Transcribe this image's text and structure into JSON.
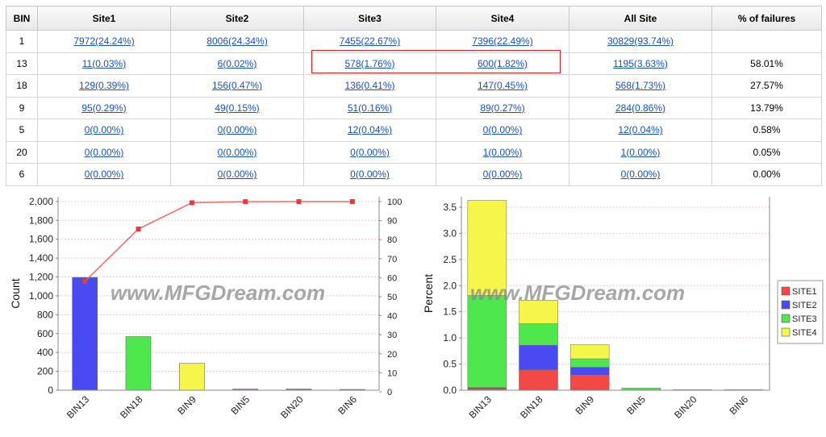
{
  "table": {
    "headers": [
      "BIN",
      "Site1",
      "Site2",
      "Site3",
      "Site4",
      "All Site",
      "% of failures"
    ],
    "rows": [
      [
        "1",
        "7972(24.24%)",
        "8006(24.34%)",
        "7455(22.67%)",
        "7396(22.49%)",
        "30829(93.74%)",
        ""
      ],
      [
        "13",
        "11(0.03%)",
        "6(0.02%)",
        "578(1.76%)",
        "600(1.82%)",
        "1195(3.63%)",
        "58.01%"
      ],
      [
        "18",
        "129(0.39%)",
        "156(0.47%)",
        "136(0.41%)",
        "147(0.45%)",
        "568(1.73%)",
        "27.57%"
      ],
      [
        "9",
        "95(0.29%)",
        "49(0.15%)",
        "51(0.16%)",
        "89(0.27%)",
        "284(0.86%)",
        "13.79%"
      ],
      [
        "5",
        "0(0.00%)",
        "0(0.00%)",
        "12(0.04%)",
        "0(0.00%)",
        "12(0.04%)",
        "0.58%"
      ],
      [
        "20",
        "0(0.00%)",
        "0(0.00%)",
        "0(0.00%)",
        "1(0.00%)",
        "1(0.00%)",
        "0.05%"
      ],
      [
        "6",
        "0(0.00%)",
        "0(0.00%)",
        "0(0.00%)",
        "0(0.00%)",
        "0(0.00%)",
        "0.00%"
      ]
    ]
  },
  "watermark": "www.MFGDream.com",
  "colors": {
    "site1": "#f24848",
    "site2": "#4a4af2",
    "site3": "#4ee84e",
    "site4": "#f6f64a",
    "pareto_line": "#f26a6a",
    "grid": "#f0c8c8",
    "axis": "#888888",
    "highlight": "#e02020",
    "link": "#1550c8"
  },
  "chart_data": [
    {
      "type": "bar",
      "categories": [
        "BIN13",
        "BIN18",
        "BIN9",
        "BIN5",
        "BIN20",
        "BIN6"
      ],
      "values": [
        1195,
        568,
        284,
        12,
        1,
        0
      ],
      "bar_colors": [
        "#4a4af2",
        "#4ee84e",
        "#f6f64a",
        "#c070c0",
        "#888888",
        "#888888"
      ],
      "ylabel": "Count",
      "ylim": [
        0,
        2050
      ],
      "yticks": [
        0,
        200,
        400,
        600,
        800,
        1000,
        1200,
        1400,
        1600,
        1800,
        2000
      ],
      "ytick_labels": [
        "0",
        "200",
        "400",
        "600",
        "800",
        "1,000",
        "1,200",
        "1,400",
        "1,600",
        "1,800",
        "2,000"
      ],
      "line": {
        "values": [
          58.01,
          85.58,
          99.37,
          99.95,
          100,
          100
        ]
      },
      "y2lim": [
        0,
        100
      ],
      "y2ticks": [
        0,
        10,
        20,
        30,
        40,
        50,
        60,
        70,
        80,
        90,
        100
      ],
      "grid": true
    },
    {
      "type": "bar",
      "stacked": true,
      "categories": [
        "BIN13",
        "BIN18",
        "BIN9",
        "BIN5",
        "BIN20",
        "BIN6"
      ],
      "series": [
        {
          "name": "SITE1",
          "values": [
            0.03,
            0.39,
            0.29,
            0.0,
            0.0,
            0.0
          ]
        },
        {
          "name": "SITE2",
          "values": [
            0.02,
            0.47,
            0.15,
            0.0,
            0.0,
            0.0
          ]
        },
        {
          "name": "SITE3",
          "values": [
            1.76,
            0.41,
            0.16,
            0.04,
            0.0,
            0.0
          ]
        },
        {
          "name": "SITE4",
          "values": [
            1.82,
            0.45,
            0.27,
            0.0,
            0.0,
            0.0
          ]
        }
      ],
      "ylabel": "Percent",
      "ylim": [
        0,
        3.7
      ],
      "yticks": [
        0,
        0.5,
        1.0,
        1.5,
        2.0,
        2.5,
        3.0,
        3.5
      ],
      "ytick_labels": [
        "0.0",
        "0.5",
        "1.0",
        "1.5",
        "2.0",
        "2.5",
        "3.0",
        "3.5"
      ],
      "legend": "right",
      "grid": true
    }
  ]
}
